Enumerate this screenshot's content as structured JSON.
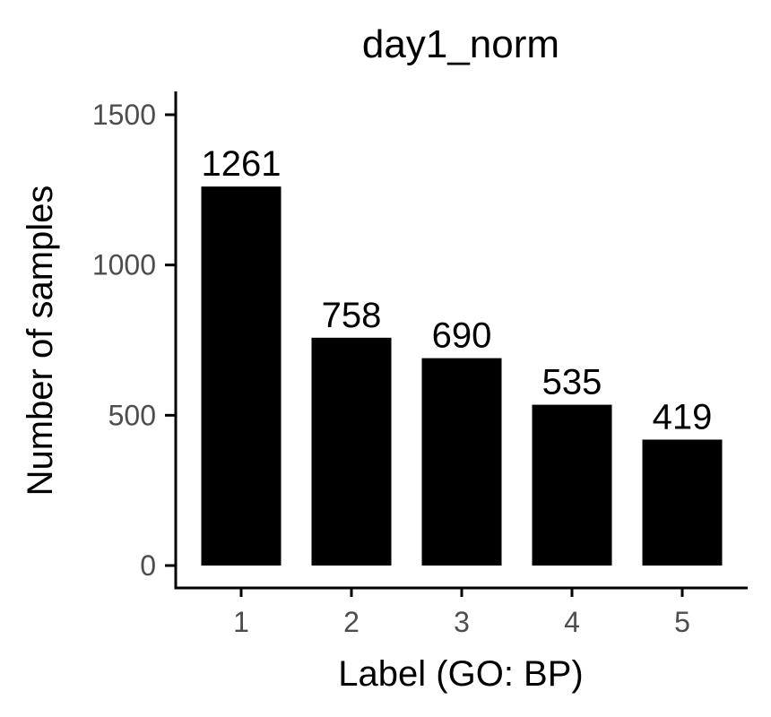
{
  "chart_data": {
    "type": "bar",
    "title": "day1_norm",
    "xlabel": "Label (GO: BP)",
    "ylabel": "Number of samples",
    "categories": [
      "1",
      "2",
      "3",
      "4",
      "5"
    ],
    "values": [
      1261,
      758,
      690,
      535,
      419
    ],
    "ylim": [
      0,
      1570
    ],
    "yticks": [
      0,
      500,
      1000,
      1500
    ],
    "bar_color": "#000000",
    "grid": false,
    "legend": "none"
  }
}
